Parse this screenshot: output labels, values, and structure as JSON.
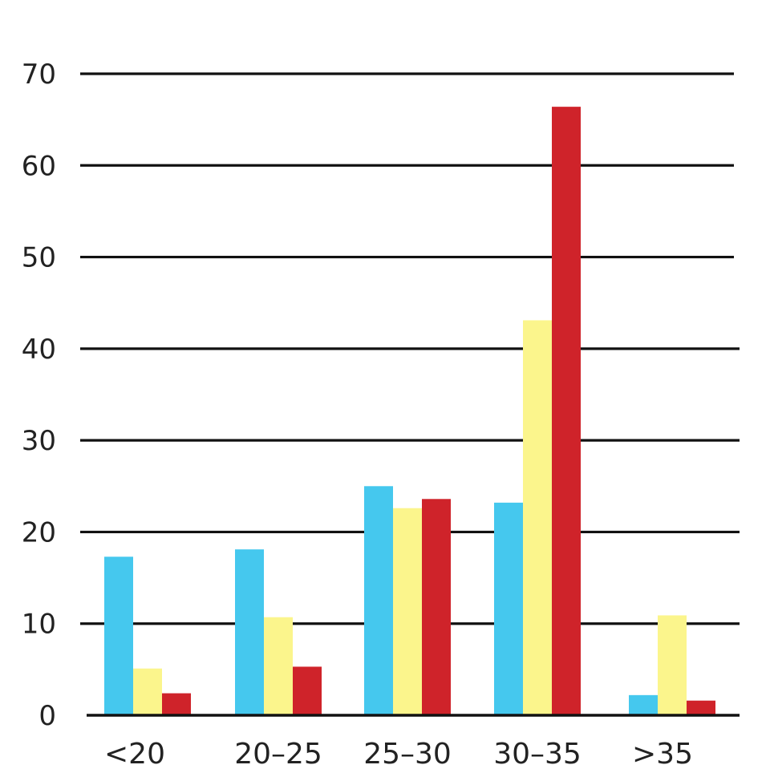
{
  "chart_data": {
    "type": "bar",
    "title": "",
    "xlabel": "",
    "ylabel": "",
    "categories": [
      "<20",
      "20–25",
      "25–30",
      "30–35",
      ">35"
    ],
    "series": [
      {
        "color": "#45c8ee",
        "values": [
          17.3,
          18.1,
          25.0,
          23.2,
          2.2
        ]
      },
      {
        "color": "#fbf58c",
        "values": [
          5.1,
          10.7,
          22.6,
          43.1,
          10.9
        ]
      },
      {
        "color": "#cf232a",
        "values": [
          2.4,
          5.3,
          23.6,
          66.4,
          1.6
        ]
      }
    ],
    "ylim": [
      0,
      70
    ],
    "yticks": [
      "0",
      "10",
      "20",
      "30",
      "40",
      "50",
      "60",
      "70"
    ],
    "grid": true,
    "legend": "none"
  }
}
